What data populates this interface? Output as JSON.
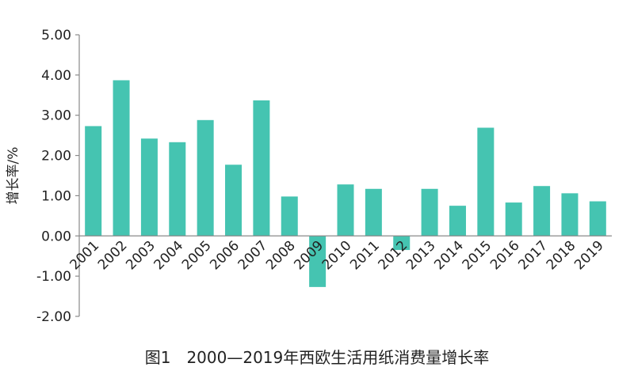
{
  "chart_data": {
    "type": "bar",
    "title": "",
    "caption": "图1　2000—2019年西欧生活用纸消费量增长率",
    "ylabel": "增长率/%",
    "xlabel": "",
    "ylim": [
      -2.0,
      5.0
    ],
    "yticks": [
      "5.00",
      "4.00",
      "3.00",
      "2.00",
      "1.00",
      "0.00",
      "-1.00",
      "-2.00"
    ],
    "ytick_values": [
      5,
      4,
      3,
      2,
      1,
      0,
      -1,
      -2
    ],
    "categories": [
      "2001",
      "2002",
      "2003",
      "2004",
      "2005",
      "2006",
      "2007",
      "2008",
      "2009",
      "2010",
      "2011",
      "2012",
      "2013",
      "2014",
      "2015",
      "2016",
      "2017",
      "2018",
      "2019"
    ],
    "values": [
      2.73,
      3.87,
      2.42,
      2.33,
      2.88,
      1.77,
      3.37,
      0.98,
      -1.27,
      1.28,
      1.17,
      -0.35,
      1.17,
      0.75,
      2.69,
      0.83,
      1.24,
      1.06,
      0.86
    ],
    "grid": false,
    "legend": "none",
    "bar_color": "#45c4b1"
  }
}
